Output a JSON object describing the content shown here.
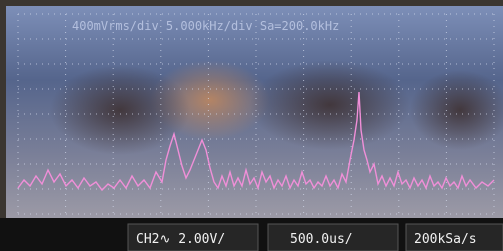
{
  "screen": {
    "header": "400mVrms/div 5.000kHz/div Sa=200.0kHz"
  },
  "status_bar": {
    "channel": "CH2∿ 2.00V/",
    "timebase": "500.0us/",
    "sample_rate": "200kSa/s"
  }
}
